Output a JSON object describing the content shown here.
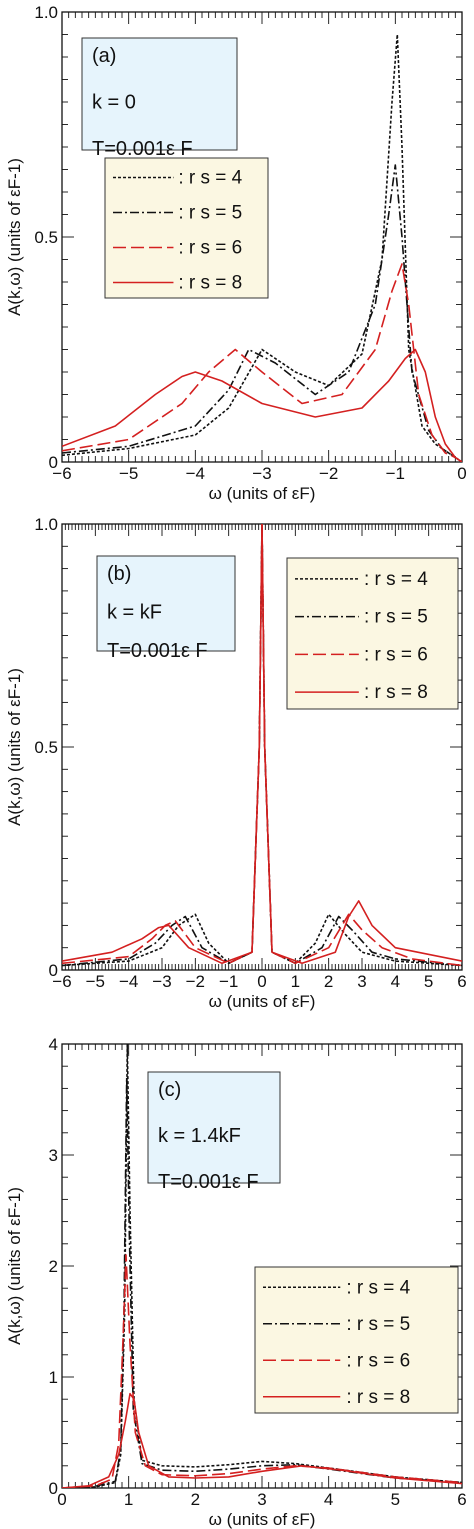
{
  "chart_data": [
    {
      "type": "line",
      "panel_label": "(a)",
      "info_lines": [
        "k = 0",
        "T=0.001ε F"
      ],
      "xlabel": "ω  (units of εF)",
      "ylabel": "A(k,ω)  (units of εF-1)",
      "xlim": [
        -6,
        0
      ],
      "ylim": [
        0,
        1.0
      ],
      "x_ticks": [
        "-6",
        "-5",
        "-4",
        "-3",
        "-2",
        "-1",
        "0"
      ],
      "y_ticks": [
        "0",
        "0.5",
        "1.0"
      ],
      "legend": [
        "r s = 4",
        "r s = 5",
        "r s = 6",
        "r s = 8"
      ],
      "series": [
        {
          "name": "r s = 4",
          "color": "#111111",
          "dash": "dotted",
          "x": [
            -6,
            -5,
            -4,
            -3.5,
            -3,
            -2.5,
            -2,
            -1.5,
            -1.2,
            -1.05,
            -0.97,
            -0.9,
            -0.8,
            -0.6,
            -0.4,
            -0.2,
            0
          ],
          "y": [
            0.015,
            0.03,
            0.06,
            0.12,
            0.25,
            0.2,
            0.17,
            0.24,
            0.45,
            0.8,
            0.95,
            0.7,
            0.25,
            0.08,
            0.04,
            0.02,
            0.0
          ]
        },
        {
          "name": "r s = 5",
          "color": "#111111",
          "dash": "dashdot",
          "x": [
            -6,
            -5,
            -4,
            -3.5,
            -3.2,
            -2.8,
            -2.2,
            -1.7,
            -1.3,
            -1.1,
            -1.0,
            -0.9,
            -0.75,
            -0.5,
            -0.3,
            -0.1,
            0
          ],
          "y": [
            0.02,
            0.035,
            0.08,
            0.16,
            0.25,
            0.22,
            0.15,
            0.2,
            0.35,
            0.55,
            0.66,
            0.5,
            0.2,
            0.07,
            0.03,
            0.01,
            0.0
          ]
        },
        {
          "name": "r s = 6",
          "color": "#d42020",
          "dash": "longdash",
          "x": [
            -6,
            -5,
            -4.2,
            -3.8,
            -3.4,
            -3.0,
            -2.4,
            -1.8,
            -1.3,
            -1.05,
            -0.9,
            -0.8,
            -0.65,
            -0.45,
            -0.25,
            -0.1,
            0
          ],
          "y": [
            0.025,
            0.05,
            0.13,
            0.2,
            0.25,
            0.2,
            0.13,
            0.15,
            0.25,
            0.38,
            0.44,
            0.35,
            0.15,
            0.06,
            0.02,
            0.01,
            0.0
          ]
        },
        {
          "name": "r s = 8",
          "color": "#d42020",
          "dash": "solid",
          "x": [
            -6,
            -5.2,
            -4.6,
            -4.2,
            -4.0,
            -3.6,
            -3.0,
            -2.2,
            -1.5,
            -1.1,
            -0.85,
            -0.7,
            -0.55,
            -0.4,
            -0.25,
            -0.1,
            0
          ],
          "y": [
            0.035,
            0.08,
            0.15,
            0.19,
            0.2,
            0.18,
            0.13,
            0.1,
            0.12,
            0.18,
            0.23,
            0.25,
            0.2,
            0.1,
            0.04,
            0.01,
            0.0
          ]
        }
      ]
    },
    {
      "type": "line",
      "panel_label": "(b)",
      "info_lines": [
        "k = kF",
        "T=0.001ε F"
      ],
      "xlabel": "ω  (units of εF)",
      "ylabel": "A(k,ω)  (units of εF-1)",
      "xlim": [
        -6,
        6
      ],
      "ylim": [
        0,
        1.0
      ],
      "x_ticks": [
        "-6",
        "-5",
        "-4",
        "-3",
        "-2",
        "-1",
        "0",
        "1",
        "2",
        "3",
        "4",
        "5",
        "6"
      ],
      "y_ticks": [
        "0",
        "0.5",
        "1.0"
      ],
      "legend": [
        "r s = 4",
        "r s = 5",
        "r s = 6",
        "r s = 8"
      ],
      "series": [
        {
          "name": "r s = 4",
          "color": "#111111",
          "dash": "dotted",
          "x": [
            -6,
            -4,
            -3,
            -2.5,
            -2.0,
            -1.6,
            -1.0,
            -0.3,
            -0.08,
            0,
            0.08,
            0.3,
            1.0,
            1.6,
            2.0,
            2.5,
            3.0,
            4,
            6
          ],
          "y": [
            0.01,
            0.02,
            0.05,
            0.1,
            0.125,
            0.06,
            0.015,
            0.04,
            0.5,
            1.0,
            0.5,
            0.04,
            0.015,
            0.06,
            0.125,
            0.08,
            0.04,
            0.02,
            0.01
          ]
        },
        {
          "name": "r s = 5",
          "color": "#111111",
          "dash": "dashdot",
          "x": [
            -6,
            -4,
            -3.2,
            -2.7,
            -2.3,
            -1.8,
            -1.0,
            -0.3,
            -0.08,
            0,
            0.08,
            0.3,
            1.0,
            1.8,
            2.3,
            2.7,
            3.3,
            4,
            6
          ],
          "y": [
            0.01,
            0.025,
            0.06,
            0.1,
            0.12,
            0.05,
            0.015,
            0.04,
            0.5,
            1.0,
            0.5,
            0.04,
            0.015,
            0.05,
            0.12,
            0.09,
            0.04,
            0.025,
            0.01
          ]
        },
        {
          "name": "r s = 6",
          "color": "#d42020",
          "dash": "longdash",
          "x": [
            -6,
            -4,
            -3.3,
            -2.9,
            -2.6,
            -2.0,
            -1.0,
            -0.3,
            -0.08,
            0,
            0.08,
            0.3,
            1.0,
            2.0,
            2.6,
            3.0,
            3.6,
            4.5,
            6
          ],
          "y": [
            0.015,
            0.03,
            0.07,
            0.1,
            0.11,
            0.05,
            0.015,
            0.04,
            0.5,
            1.0,
            0.5,
            0.04,
            0.015,
            0.05,
            0.125,
            0.09,
            0.05,
            0.025,
            0.01
          ]
        },
        {
          "name": "r s = 8",
          "color": "#d42020",
          "dash": "solid",
          "x": [
            -6,
            -4.5,
            -3.6,
            -3.1,
            -2.8,
            -2.2,
            -1.2,
            -0.3,
            -0.08,
            0,
            0.08,
            0.3,
            1.2,
            2.2,
            2.6,
            2.9,
            3.3,
            4.0,
            6
          ],
          "y": [
            0.02,
            0.04,
            0.07,
            0.095,
            0.1,
            0.05,
            0.015,
            0.04,
            0.5,
            1.0,
            0.5,
            0.04,
            0.015,
            0.04,
            0.12,
            0.155,
            0.1,
            0.05,
            0.02
          ]
        }
      ]
    },
    {
      "type": "line",
      "panel_label": "(c)",
      "info_lines": [
        "k = 1.4kF",
        "T=0.001ε F"
      ],
      "xlabel": "ω  (units of εF)",
      "ylabel": "A(k,ω)  (units of εF-1)",
      "xlim": [
        0,
        6
      ],
      "ylim": [
        0,
        4
      ],
      "x_ticks": [
        "0",
        "1",
        "2",
        "3",
        "4",
        "5",
        "6"
      ],
      "y_ticks": [
        "0",
        "1",
        "2",
        "3",
        "4"
      ],
      "legend": [
        "r s = 4",
        "r s = 5",
        "r s = 6",
        "r s = 8"
      ],
      "series": [
        {
          "name": "r s = 4",
          "color": "#111111",
          "dash": "dotted",
          "x": [
            0,
            0.5,
            0.8,
            0.88,
            0.94,
            0.98,
            1.02,
            1.08,
            1.2,
            1.5,
            2.0,
            2.5,
            3.0,
            3.5,
            4.0,
            5.0,
            6.0
          ],
          "y": [
            0.0,
            0.01,
            0.05,
            0.3,
            1.6,
            4.0,
            2.5,
            0.8,
            0.25,
            0.2,
            0.19,
            0.21,
            0.24,
            0.22,
            0.18,
            0.1,
            0.05
          ]
        },
        {
          "name": "r s = 5",
          "color": "#111111",
          "dash": "dashdot",
          "x": [
            0,
            0.5,
            0.8,
            0.88,
            0.93,
            0.97,
            1.01,
            1.07,
            1.2,
            1.5,
            2.0,
            2.5,
            3.0,
            3.5,
            4.0,
            5.0,
            6.0
          ],
          "y": [
            0.0,
            0.015,
            0.06,
            0.35,
            1.6,
            3.7,
            2.3,
            0.7,
            0.22,
            0.16,
            0.15,
            0.17,
            0.2,
            0.21,
            0.17,
            0.09,
            0.05
          ]
        },
        {
          "name": "r s = 6",
          "color": "#d42020",
          "dash": "longdash",
          "x": [
            0,
            0.5,
            0.75,
            0.85,
            0.92,
            0.96,
            1.02,
            1.1,
            1.25,
            1.5,
            2.0,
            2.5,
            3.0,
            3.5,
            4.0,
            5.0,
            6.0
          ],
          "y": [
            0.0,
            0.02,
            0.08,
            0.4,
            1.4,
            2.1,
            1.3,
            0.5,
            0.2,
            0.12,
            0.11,
            0.13,
            0.17,
            0.2,
            0.18,
            0.1,
            0.05
          ]
        },
        {
          "name": "r s = 8",
          "color": "#d42020",
          "dash": "solid",
          "x": [
            0,
            0.4,
            0.7,
            0.85,
            0.95,
            1.02,
            1.08,
            1.15,
            1.3,
            1.6,
            2.0,
            2.5,
            3.0,
            3.6,
            4.2,
            5.0,
            6.0
          ],
          "y": [
            0.0,
            0.02,
            0.1,
            0.3,
            0.6,
            0.85,
            0.8,
            0.5,
            0.2,
            0.1,
            0.09,
            0.1,
            0.15,
            0.2,
            0.16,
            0.09,
            0.04
          ]
        }
      ]
    }
  ]
}
